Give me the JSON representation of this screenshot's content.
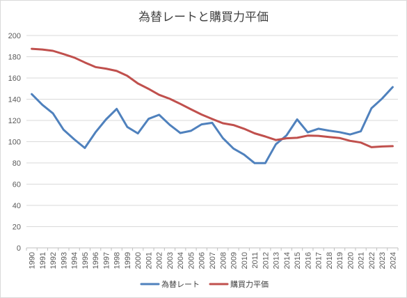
{
  "chart_data": {
    "type": "line",
    "title": "為替レートと購買力平価",
    "xlabel": "",
    "ylabel": "",
    "ylim": [
      0,
      200
    ],
    "yticks": [
      0,
      20,
      40,
      60,
      80,
      100,
      120,
      140,
      160,
      180,
      200
    ],
    "grid": true,
    "legend_position": "bottom",
    "categories": [
      "1990",
      "1991",
      "1992",
      "1993",
      "1994",
      "1995",
      "1996",
      "1997",
      "1998",
      "1999",
      "2000",
      "2001",
      "2002",
      "2003",
      "2004",
      "2005",
      "2006",
      "2007",
      "2008",
      "2009",
      "2010",
      "2011",
      "2012",
      "2013",
      "2014",
      "2015",
      "2016",
      "2017",
      "2018",
      "2019",
      "2020",
      "2021",
      "2022",
      "2023",
      "2024"
    ],
    "series": [
      {
        "name": "為替レート",
        "color": "#4f81bd",
        "values": [
          144.8,
          134.7,
          126.7,
          111.2,
          102.2,
          94.1,
          108.8,
          121.0,
          130.9,
          113.9,
          107.8,
          121.5,
          125.3,
          115.9,
          108.2,
          110.2,
          116.3,
          117.8,
          103.4,
          93.6,
          87.8,
          79.8,
          79.8,
          97.6,
          105.9,
          121.0,
          108.8,
          112.2,
          110.4,
          109.0,
          106.8,
          109.8,
          131.5,
          140.5,
          151.4
        ]
      },
      {
        "name": "購買力平価",
        "color": "#c0504d",
        "values": [
          187.5,
          186.8,
          185.6,
          182.5,
          179.2,
          174.6,
          170.3,
          168.8,
          166.6,
          162.0,
          154.8,
          149.8,
          144.1,
          140.4,
          135.6,
          130.5,
          125.6,
          121.4,
          117.4,
          115.7,
          112.2,
          107.9,
          104.9,
          101.6,
          103.2,
          103.7,
          105.7,
          105.5,
          104.4,
          103.5,
          100.8,
          99.2,
          94.8,
          95.5,
          95.8
        ]
      }
    ]
  }
}
